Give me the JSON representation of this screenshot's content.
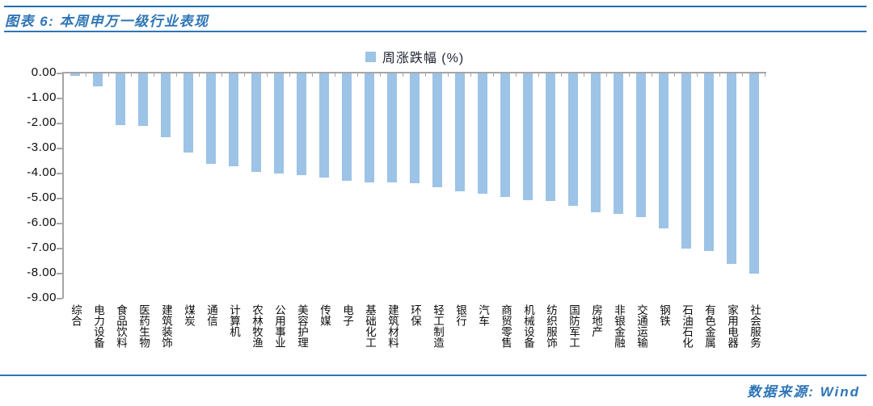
{
  "header": {
    "title": "图表 6: 本周申万一级行业表现"
  },
  "legend": {
    "label": "周涨跌幅 (%)"
  },
  "footer": {
    "source": "数据来源: Wind"
  },
  "colors": {
    "accent_blue": "#2E75B6",
    "bar_fill": "#9DC3E6",
    "axis_gray": "#A6A6A6",
    "text_black": "#0d0d0d"
  },
  "chart_data": {
    "type": "bar",
    "title": "本周申万一级行业表现",
    "legend": [
      "周涨跌幅 (%)"
    ],
    "legend_position": "top",
    "grid": false,
    "ylabel": "",
    "xlabel": "",
    "ylim": [
      -9,
      0
    ],
    "y_ticks": [
      "0.00",
      "-1.00",
      "-2.00",
      "-3.00",
      "-4.00",
      "-5.00",
      "-6.00",
      "-7.00",
      "-8.00",
      "-9.00"
    ],
    "categories": [
      "综合",
      "电力设备",
      "食品饮料",
      "医药生物",
      "建筑装饰",
      "煤炭",
      "通信",
      "计算机",
      "农林牧渔",
      "公用事业",
      "美容护理",
      "传媒",
      "电子",
      "基础化工",
      "建筑材料",
      "环保",
      "轻工制造",
      "银行",
      "汽车",
      "商贸零售",
      "机械设备",
      "纺织服饰",
      "国防军工",
      "房地产",
      "非银金融",
      "交通运输",
      "钢铁",
      "石油石化",
      "有色金属",
      "家用电器",
      "社会服务"
    ],
    "values": [
      -0.1,
      -0.5,
      -2.05,
      -2.1,
      -2.55,
      -3.15,
      -3.6,
      -3.7,
      -3.95,
      -4.0,
      -4.05,
      -4.15,
      -4.3,
      -4.35,
      -4.35,
      -4.4,
      -4.55,
      -4.7,
      -4.8,
      -4.95,
      -5.05,
      -5.1,
      -5.3,
      -5.55,
      -5.6,
      -5.75,
      -6.2,
      -7.0,
      -7.1,
      -7.6,
      -8.0
    ]
  }
}
